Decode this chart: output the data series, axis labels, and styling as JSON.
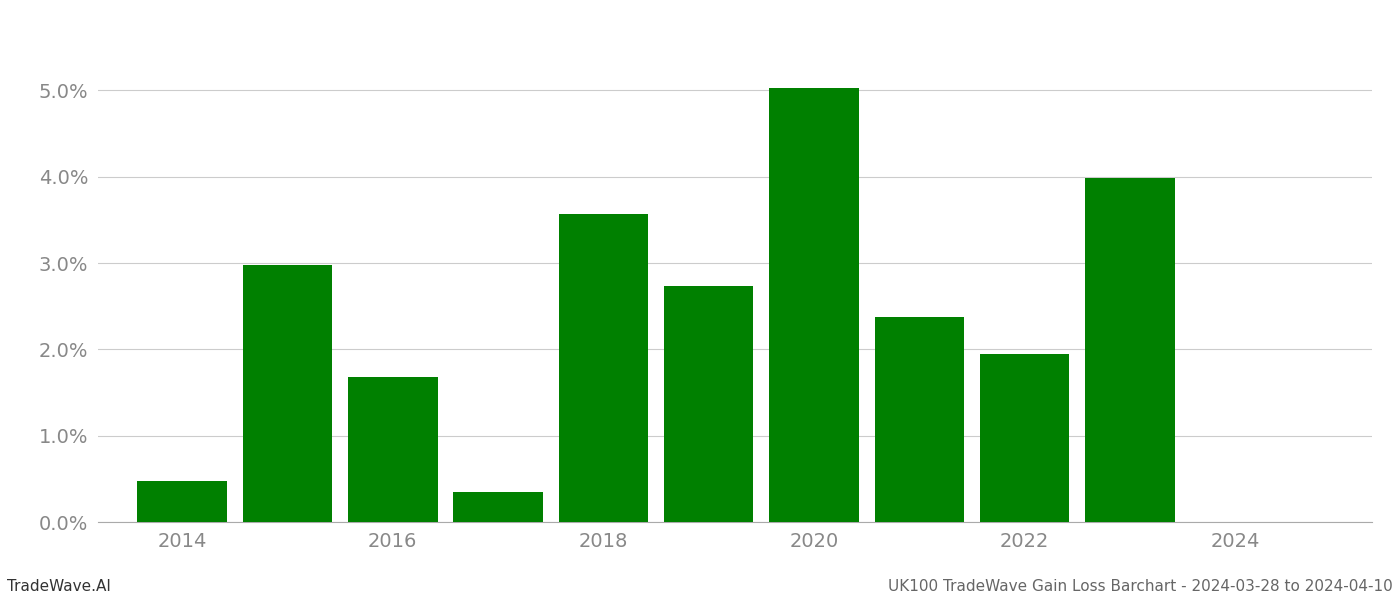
{
  "years": [
    2014,
    2015,
    2016,
    2017,
    2018,
    2019,
    2020,
    2021,
    2022,
    2023
  ],
  "values": [
    0.0047,
    0.0298,
    0.0168,
    0.0035,
    0.0357,
    0.0273,
    0.0503,
    0.0238,
    0.0195,
    0.0398
  ],
  "bar_color": "#008000",
  "title": "UK100 TradeWave Gain Loss Barchart - 2024-03-28 to 2024-04-10",
  "watermark_left": "TradeWave.AI",
  "ylim": [
    0,
    0.057
  ],
  "yticks": [
    0.0,
    0.01,
    0.02,
    0.03,
    0.04,
    0.05
  ],
  "xticks": [
    2014,
    2016,
    2018,
    2020,
    2022,
    2024
  ],
  "background_color": "#ffffff",
  "grid_color": "#cccccc",
  "bar_width": 0.85,
  "title_fontsize": 11,
  "watermark_fontsize": 11,
  "tick_fontsize": 14,
  "tick_color": "#888888",
  "spine_color": "#aaaaaa",
  "xlim_left": 2013.2,
  "xlim_right": 2025.3
}
